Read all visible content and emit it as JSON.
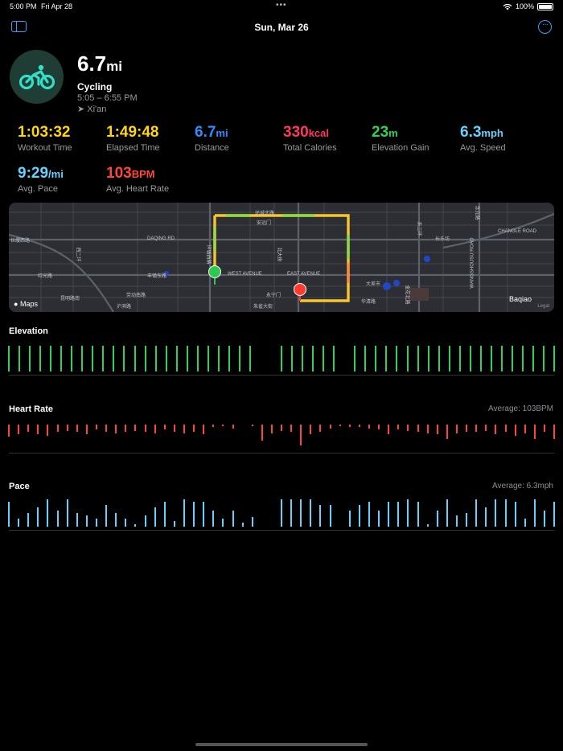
{
  "status_bar": {
    "time": "5:00 PM",
    "date": "Fri Apr 28",
    "battery": "100%"
  },
  "nav": {
    "title": "Sun, Mar 26"
  },
  "workout": {
    "distance_value": "6.7",
    "distance_unit": "mi",
    "activity": "Cycling",
    "time_range": "5:05 – 6:55 PM",
    "location": "Xi'an",
    "icon": "bicycle-icon",
    "accent": "#31e0c6"
  },
  "metrics": [
    {
      "value": "1:03:32",
      "unit": "",
      "label": "Workout Time",
      "color": "#ffd60a"
    },
    {
      "value": "1:49:48",
      "unit": "",
      "label": "Elapsed Time",
      "color": "#ffd60a"
    },
    {
      "value": "6.7",
      "unit": "mi",
      "label": "Distance",
      "color": "#2f8cff"
    },
    {
      "value": "330",
      "unit": "kcal",
      "label": "Total Calories",
      "color": "#ff375f"
    },
    {
      "value": "23",
      "unit": "m",
      "label": "Elevation Gain",
      "color": "#30d158"
    },
    {
      "value": "6.3",
      "unit": "mph",
      "label": "Avg. Speed",
      "color": "#64d2ff"
    },
    {
      "value": "9:29",
      "unit": "/mi",
      "label": "Avg. Pace",
      "color": "#64d2ff"
    },
    {
      "value": "103",
      "unit": "BPM",
      "label": "Avg. Heart Rate",
      "color": "#ff453a"
    }
  ],
  "map": {
    "labels": [
      "DAQING RD",
      "WEST AVENUE",
      "EAST AVENUE",
      "CHANGLE ROAD",
      "WANGSHOUSU ROAD",
      "环城北路",
      "环城西路",
      "丰镇东路",
      "红光路",
      "昆明路南",
      "劳动南路",
      "沪滨路",
      "西二环",
      "含元路",
      "华清路",
      "金花北路",
      "长缨西路",
      "安远门",
      "永宁门",
      "朱雀大街",
      "北大街",
      "大差市",
      "东二环",
      "长乐坊"
    ],
    "brand": "Maps",
    "place": "Baqiao",
    "legal": "Legal"
  },
  "charts": {
    "elevation": {
      "title": "Elevation",
      "average": "",
      "color": "#30d158",
      "values": [
        1,
        1,
        1,
        1,
        1,
        1,
        1,
        1,
        1,
        1,
        1,
        1,
        1,
        1,
        1,
        1,
        1,
        1,
        1,
        1,
        1,
        1,
        1,
        1,
        null,
        null,
        1,
        1,
        1,
        1,
        1,
        1,
        null,
        1,
        1,
        1,
        1,
        1,
        1,
        1,
        1,
        1,
        1,
        1,
        1,
        1,
        1,
        1,
        1,
        1,
        1,
        1,
        1
      ]
    },
    "heart_rate": {
      "title": "Heart Rate",
      "average": "Average: 103BPM",
      "color": "#ff453a",
      "values": [
        0.5,
        0.4,
        0.3,
        0.4,
        0.45,
        0.3,
        0.25,
        0.3,
        0.4,
        0.2,
        0.3,
        0.35,
        0.3,
        0.25,
        0.3,
        0.35,
        0.2,
        0.3,
        0.35,
        0.3,
        0.4,
        0.1,
        0.05,
        0.15,
        null,
        0.08,
        0.65,
        0.35,
        0.25,
        0.3,
        0.85,
        0.4,
        0.3,
        0.15,
        0.05,
        0.1,
        0.1,
        0.15,
        0.2,
        0.4,
        0.2,
        0.25,
        0.3,
        0.35,
        0.4,
        0.6,
        0.35,
        0.3,
        0.3,
        0.25,
        0.4,
        0.3,
        0.45,
        0.35,
        0.6,
        0.3,
        0.6
      ]
    },
    "pace": {
      "title": "Pace",
      "average": "Average: 6.3mph",
      "color": "#64d2ff",
      "values": [
        0.9,
        0.3,
        0.5,
        0.7,
        1,
        0.6,
        1,
        0.5,
        0.4,
        0.3,
        0.8,
        0.5,
        0.3,
        0.1,
        0.4,
        0.7,
        0.9,
        0.2,
        1,
        0.9,
        0.9,
        0.6,
        0.3,
        0.6,
        0.15,
        0.35,
        null,
        null,
        1,
        1,
        1,
        1,
        0.8,
        0.8,
        null,
        0.6,
        0.8,
        0.9,
        0.6,
        0.9,
        0.9,
        1,
        0.9,
        0.1,
        0.6,
        1,
        0.4,
        0.5,
        1,
        0.7,
        1,
        1,
        0.9,
        0.3,
        1,
        0.6,
        0.9
      ]
    }
  }
}
